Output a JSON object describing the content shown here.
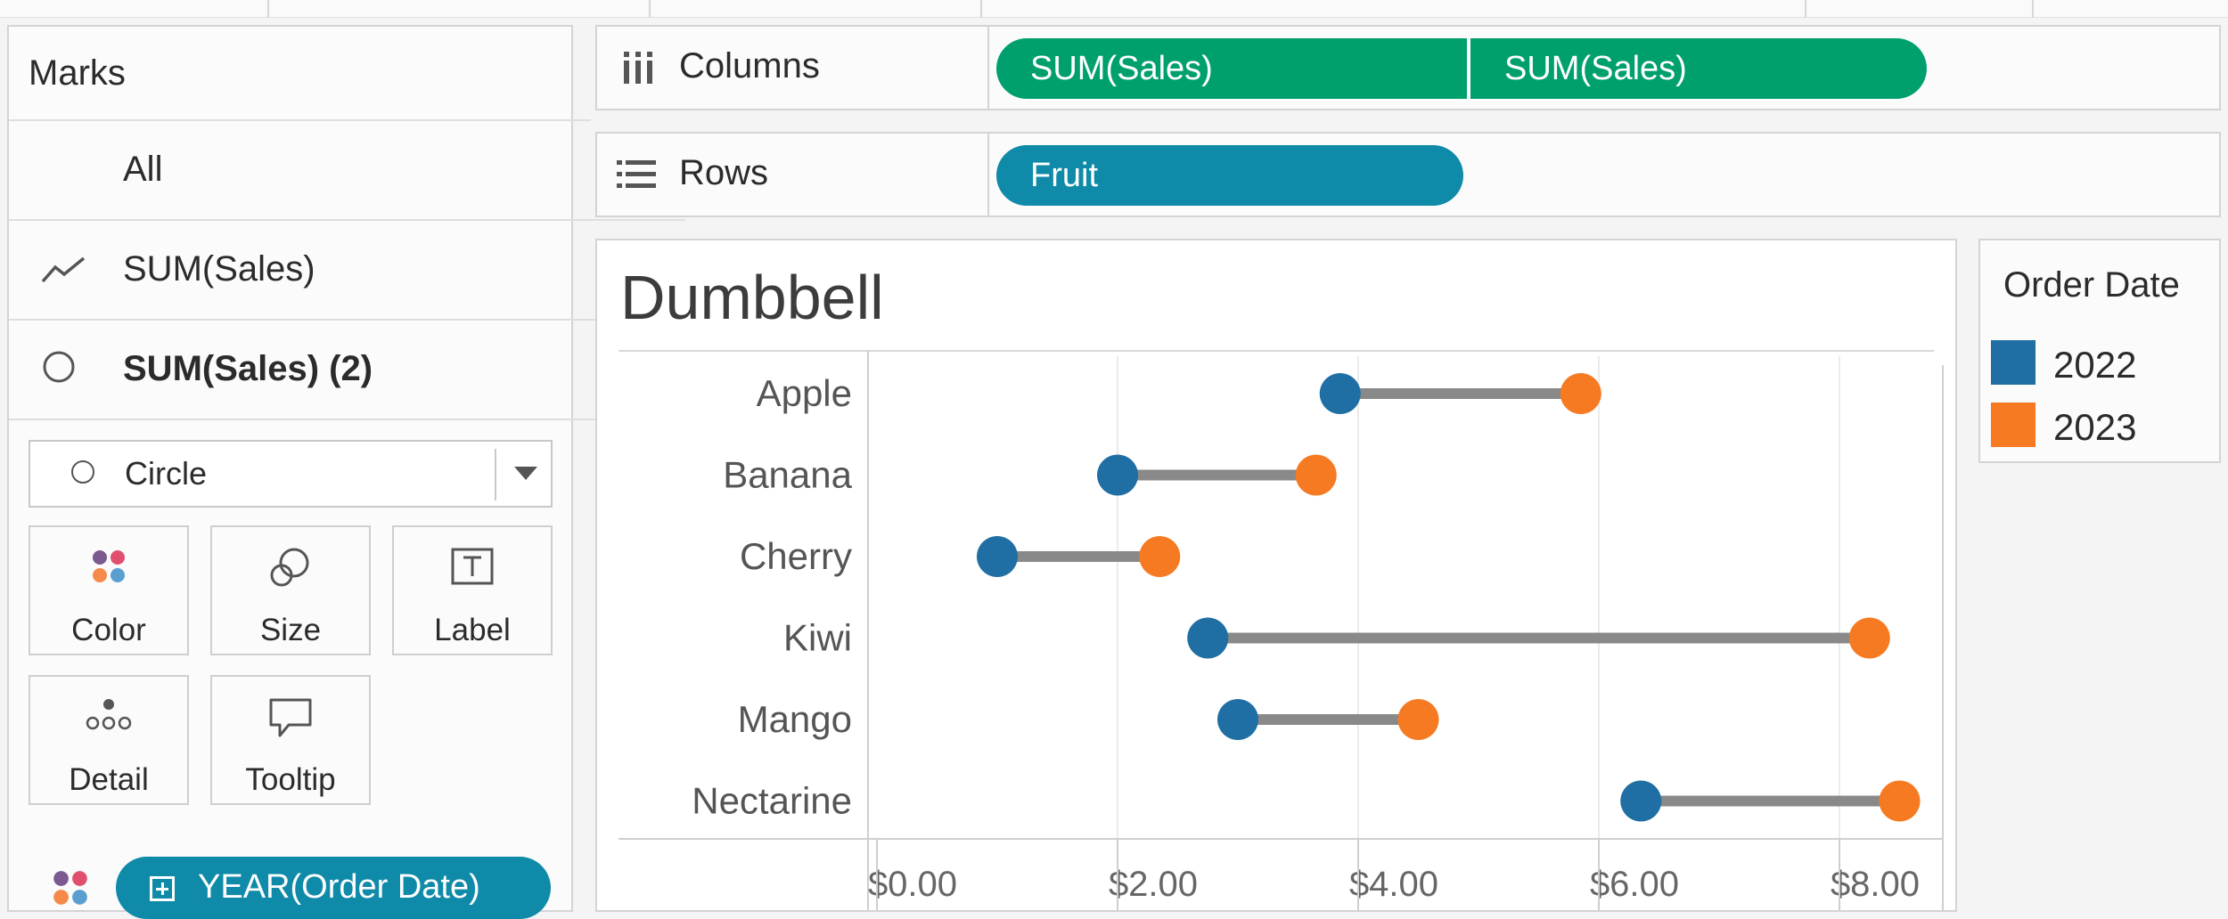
{
  "marks": {
    "title": "Marks",
    "all_label": "All",
    "layer1_label": "SUM(Sales)",
    "layer2_label": "SUM(Sales) (2)",
    "mark_type": "Circle",
    "buttons": {
      "color": "Color",
      "size": "Size",
      "label": "Label",
      "detail": "Detail",
      "tooltip": "Tooltip"
    },
    "color_pill": "YEAR(Order Date)"
  },
  "shelves": {
    "columns_label": "Columns",
    "columns_pills": [
      "SUM(Sales)",
      "SUM(Sales)"
    ],
    "rows_label": "Rows",
    "rows_pill": "Fruit"
  },
  "legend": {
    "title": "Order Date",
    "items": [
      {
        "label": "2022",
        "color": "#1f6fa4"
      },
      {
        "label": "2023",
        "color": "#f67a22"
      }
    ]
  },
  "colors": {
    "green_pill": "#00a06e",
    "teal_pill": "#0f8aa8",
    "connector": "#898989"
  },
  "chart_data": {
    "type": "scatter",
    "title": "Dumbbell",
    "categories": [
      "Apple",
      "Banana",
      "Cherry",
      "Kiwi",
      "Mango",
      "Nectarine"
    ],
    "series": [
      {
        "name": "2022",
        "values": [
          3.85,
          2.0,
          1.0,
          2.75,
          3.0,
          6.35
        ]
      },
      {
        "name": "2023",
        "values": [
          5.85,
          3.65,
          2.35,
          8.25,
          4.5,
          8.5
        ]
      }
    ],
    "x_ticks": [
      "$0.00",
      "$2.00",
      "$4.00",
      "$6.00",
      "$8.00"
    ],
    "xlim": [
      0,
      8.9
    ],
    "grid": true
  }
}
